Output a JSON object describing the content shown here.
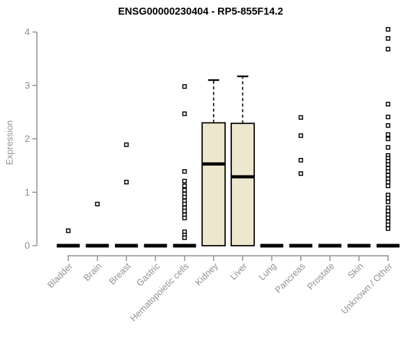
{
  "chart_data": {
    "type": "box",
    "title": "ENSG00000230404 - RP5-855F14.2",
    "xlabel": "",
    "ylabel": "Expression",
    "ylim": [
      0,
      4
    ],
    "yticks": [
      0,
      1,
      2,
      3,
      4
    ],
    "grid": false,
    "legend": "none",
    "categories": [
      "Bladder",
      "Brain",
      "Breast",
      "Gastric",
      "Hematopoietic cells",
      "Kidney",
      "Liver",
      "Lung",
      "Pancreas",
      "Prostate",
      "Skin",
      "Unknown / Other"
    ],
    "series": [
      {
        "category": "Bladder",
        "q1": 0,
        "median": 0,
        "q3": 0,
        "whisker_low": 0,
        "whisker_high": 0,
        "outliers": [
          0.28
        ]
      },
      {
        "category": "Brain",
        "q1": 0,
        "median": 0,
        "q3": 0,
        "whisker_low": 0,
        "whisker_high": 0,
        "outliers": [
          0.78
        ]
      },
      {
        "category": "Breast",
        "q1": 0,
        "median": 0,
        "q3": 0,
        "whisker_low": 0,
        "whisker_high": 0,
        "outliers": [
          1.89,
          1.19
        ]
      },
      {
        "category": "Gastric",
        "q1": 0,
        "median": 0,
        "q3": 0,
        "whisker_low": 0,
        "whisker_high": 0,
        "outliers": []
      },
      {
        "category": "Hematopoietic cells",
        "q1": 0,
        "median": 0,
        "q3": 0,
        "whisker_low": 0,
        "whisker_high": 0,
        "outliers": [
          2.98,
          2.47,
          1.39,
          1.21,
          1.12,
          1.04,
          0.97,
          0.91,
          0.84,
          0.78,
          0.71,
          0.65,
          0.58,
          0.52,
          0.26,
          0.2,
          0.15
        ]
      },
      {
        "category": "Kidney",
        "q1": 0,
        "median": 1.53,
        "q3": 2.3,
        "whisker_low": 0,
        "whisker_high": 3.1,
        "outliers": []
      },
      {
        "category": "Liver",
        "q1": 0,
        "median": 1.29,
        "q3": 2.29,
        "whisker_low": 0,
        "whisker_high": 3.17,
        "outliers": []
      },
      {
        "category": "Lung",
        "q1": 0,
        "median": 0,
        "q3": 0,
        "whisker_low": 0,
        "whisker_high": 0,
        "outliers": []
      },
      {
        "category": "Pancreas",
        "q1": 0,
        "median": 0,
        "q3": 0,
        "whisker_low": 0,
        "whisker_high": 0,
        "outliers": [
          2.4,
          2.06,
          1.6,
          1.35
        ]
      },
      {
        "category": "Prostate",
        "q1": 0,
        "median": 0,
        "q3": 0,
        "whisker_low": 0,
        "whisker_high": 0,
        "outliers": []
      },
      {
        "category": "Skin",
        "q1": 0,
        "median": 0,
        "q3": 0,
        "whisker_low": 0,
        "whisker_high": 0,
        "outliers": []
      },
      {
        "category": "Unknown / Other",
        "q1": 0,
        "median": 0,
        "q3": 0,
        "whisker_low": 0,
        "whisker_high": 0,
        "outliers": [
          4.05,
          3.88,
          3.68,
          2.65,
          2.41,
          2.25,
          2.08,
          2.0,
          1.84,
          1.69,
          1.64,
          1.58,
          1.52,
          1.45,
          1.39,
          1.32,
          1.25,
          1.19,
          1.12,
          0.95,
          0.89,
          0.82,
          0.71,
          0.65,
          0.58,
          0.52,
          0.45,
          0.39,
          0.32
        ]
      }
    ],
    "colors": {
      "background": "#ffffff",
      "box_fill": "#ECE7CD",
      "box_stroke": "#000000",
      "median": "#000000",
      "whisker": "#000000",
      "outlier_stroke": "#000000",
      "outlier_fill": "#ffffff",
      "axis": "#8a8a8a",
      "tick_label": "#919191",
      "title": "#000000"
    }
  }
}
